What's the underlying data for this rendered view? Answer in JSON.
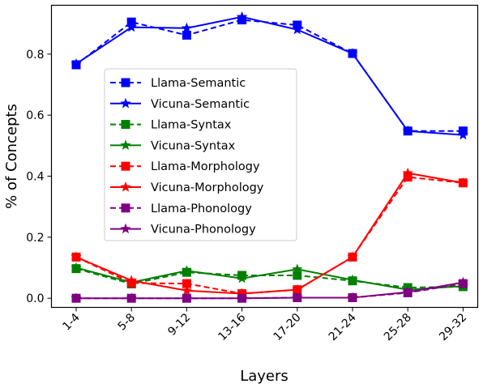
{
  "chart_data": {
    "type": "line",
    "categories": [
      "1-4",
      "5-8",
      "9-12",
      "13-16",
      "17-20",
      "21-24",
      "25-28",
      "29-32"
    ],
    "xlabel": "Layers",
    "ylabel": "% of Concepts",
    "ylim": [
      -0.03,
      0.96
    ],
    "yticks": [
      "0.0",
      "0.2",
      "0.4",
      "0.6",
      "0.8"
    ],
    "grid": false,
    "legend_position": "center-left",
    "series": [
      {
        "name": "Llama-Semantic",
        "color": "#0000ff",
        "marker": "square",
        "linestyle": "dashed",
        "values": [
          0.765,
          0.905,
          0.862,
          0.912,
          0.895,
          0.802,
          0.548,
          0.548
        ]
      },
      {
        "name": "Vicuna-Semantic",
        "color": "#0000ff",
        "marker": "star",
        "linestyle": "solid",
        "values": [
          0.768,
          0.888,
          0.885,
          0.922,
          0.88,
          0.802,
          0.548,
          0.535
        ]
      },
      {
        "name": "Llama-Syntax",
        "color": "#008000",
        "marker": "square",
        "linestyle": "dashed",
        "values": [
          0.097,
          0.047,
          0.085,
          0.075,
          0.075,
          0.057,
          0.035,
          0.038
        ]
      },
      {
        "name": "Vicuna-Syntax",
        "color": "#008000",
        "marker": "star",
        "linestyle": "solid",
        "values": [
          0.1,
          0.052,
          0.09,
          0.065,
          0.095,
          0.06,
          0.028,
          0.04
        ]
      },
      {
        "name": "Llama-Morphology",
        "color": "#ff0000",
        "marker": "square",
        "linestyle": "dashed",
        "values": [
          0.135,
          0.05,
          0.048,
          0.015,
          0.028,
          0.135,
          0.397,
          0.378
        ]
      },
      {
        "name": "Vicuna-Morphology",
        "color": "#ff0000",
        "marker": "star",
        "linestyle": "solid",
        "values": [
          0.135,
          0.058,
          0.025,
          0.015,
          0.028,
          0.135,
          0.41,
          0.378
        ]
      },
      {
        "name": "Llama-Phonology",
        "color": "#800080",
        "marker": "square",
        "linestyle": "dashed",
        "values": [
          0.0,
          0.0,
          0.0,
          0.0,
          0.002,
          0.002,
          0.018,
          0.048
        ]
      },
      {
        "name": "Vicuna-Phonology",
        "color": "#800080",
        "marker": "star",
        "linestyle": "solid",
        "values": [
          0.0,
          0.0,
          0.0,
          0.0,
          0.002,
          0.002,
          0.02,
          0.052
        ]
      }
    ]
  }
}
